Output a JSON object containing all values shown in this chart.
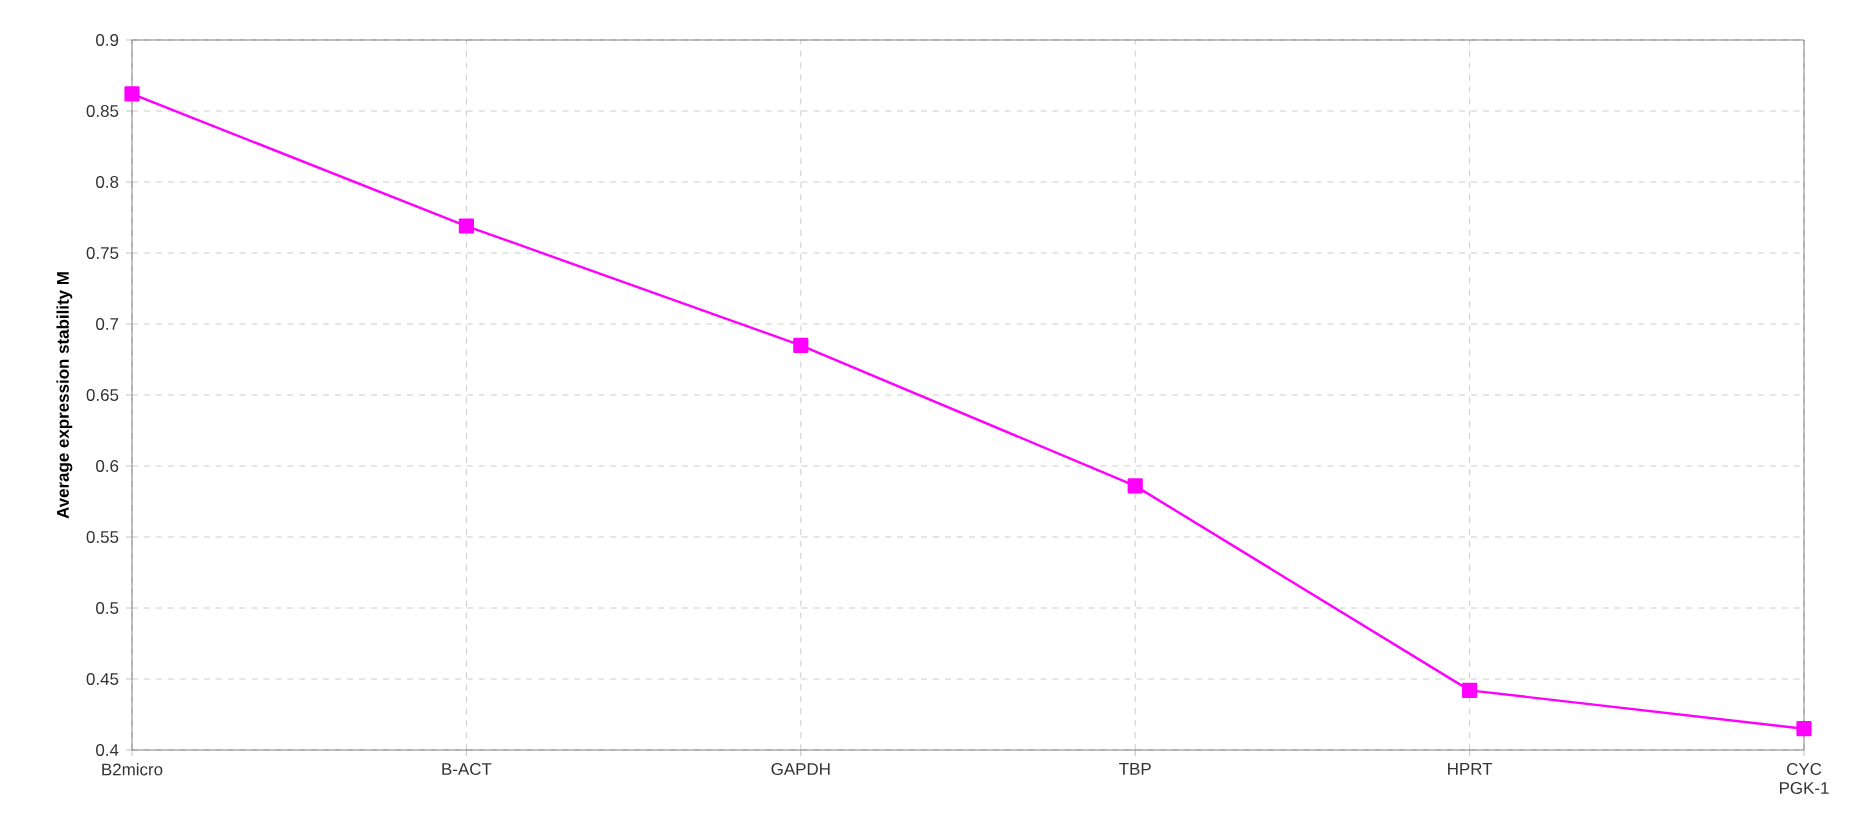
{
  "chart_data": {
    "type": "line",
    "ylabel": "Average expression stability M",
    "categories": [
      "B2micro",
      "B-ACT",
      "GAPDH",
      "TBP",
      "HPRT",
      "CYC PGK-1"
    ],
    "series": [
      {
        "color": "#ff00ff",
        "values": [
          0.862,
          0.769,
          0.685,
          0.586,
          0.442,
          0.415
        ]
      }
    ],
    "ylim": [
      0.4,
      0.9
    ],
    "yticks": [
      0.4,
      0.45,
      0.5,
      0.55,
      0.6,
      0.65,
      0.7,
      0.75,
      0.8,
      0.85,
      0.9
    ],
    "grid": true,
    "marker": "square",
    "line_style": "solid"
  }
}
